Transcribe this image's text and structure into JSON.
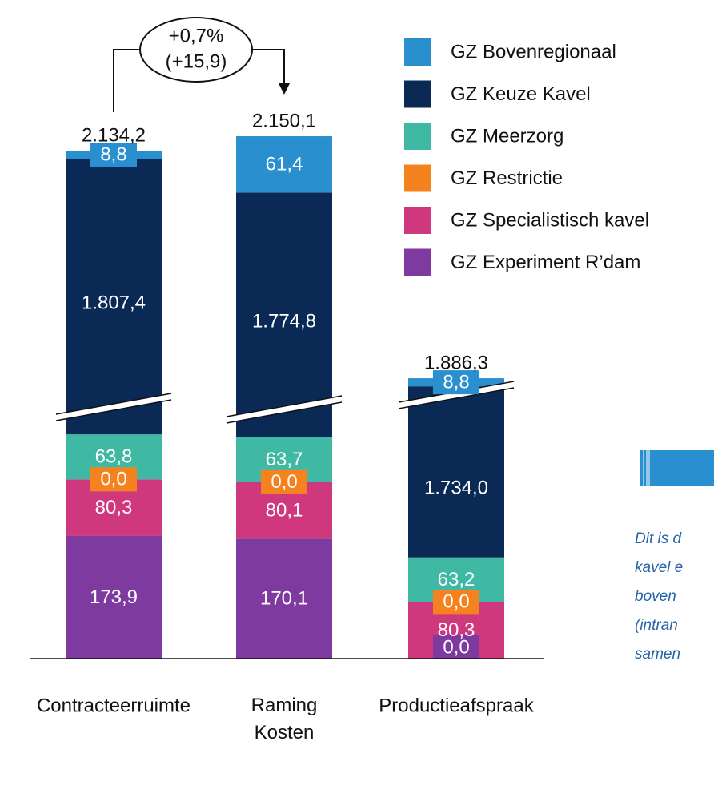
{
  "chart_data": {
    "type": "bar",
    "stacked": true,
    "categories": [
      "Contracteerruimte",
      "Raming Kosten",
      "Productieafspraak"
    ],
    "series": [
      {
        "name": "GZ Experiment R’dam",
        "color": "#7e3a9e",
        "values": [
          173.9,
          170.1,
          0.0
        ],
        "value_labels": [
          "173,9",
          "170,1",
          "0,0"
        ]
      },
      {
        "name": "GZ Specialistisch kavel",
        "color": "#d0387e",
        "values": [
          80.3,
          80.1,
          80.3
        ],
        "value_labels": [
          "80,3",
          "80,1",
          "80,3"
        ]
      },
      {
        "name": "GZ Restrictie",
        "color": "#f5821f",
        "values": [
          0.0,
          0.0,
          0.0
        ],
        "value_labels": [
          "0,0",
          "0,0",
          "0,0"
        ]
      },
      {
        "name": "GZ Meerzorg",
        "color": "#3fb8a4",
        "values": [
          63.8,
          63.7,
          63.2
        ],
        "value_labels": [
          "63,8",
          "63,7",
          "63,2"
        ]
      },
      {
        "name": "GZ Keuze Kavel",
        "color": "#0a2a55",
        "values": [
          1807.4,
          1774.8,
          1734.0
        ],
        "value_labels": [
          "1.807,4",
          "1.774,8",
          "1.734,0"
        ]
      },
      {
        "name": "GZ Bovenregionaal",
        "color": "#2a8fce",
        "values": [
          8.8,
          61.4,
          8.8
        ],
        "value_labels": [
          "8,8",
          "61,4",
          "8,8"
        ]
      }
    ],
    "totals": [
      2134.2,
      2150.1,
      1886.3
    ],
    "total_labels": [
      "2.134,2",
      "2.150,1",
      "1.886,3"
    ],
    "annotation": {
      "lines": [
        "+0,7%",
        "(+15,9)"
      ]
    },
    "side_note": [
      "Dit is d",
      "kavel e",
      "boven",
      "(intran",
      "samen"
    ]
  }
}
